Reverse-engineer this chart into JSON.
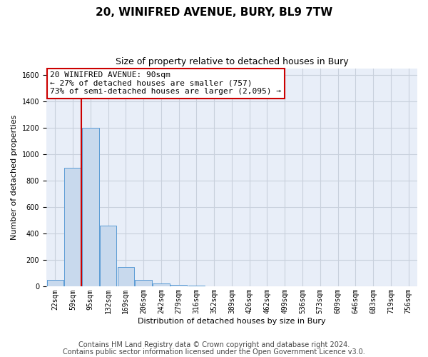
{
  "title": "20, WINIFRED AVENUE, BURY, BL9 7TW",
  "subtitle": "Size of property relative to detached houses in Bury",
  "xlabel": "Distribution of detached houses by size in Bury",
  "ylabel": "Number of detached properties",
  "categories": [
    "22sqm",
    "59sqm",
    "95sqm",
    "132sqm",
    "169sqm",
    "206sqm",
    "242sqm",
    "279sqm",
    "316sqm",
    "352sqm",
    "389sqm",
    "426sqm",
    "462sqm",
    "499sqm",
    "536sqm",
    "573sqm",
    "609sqm",
    "646sqm",
    "683sqm",
    "719sqm",
    "756sqm"
  ],
  "values": [
    50,
    900,
    1200,
    460,
    150,
    50,
    25,
    15,
    10,
    0,
    0,
    0,
    0,
    0,
    0,
    0,
    0,
    0,
    0,
    0,
    0
  ],
  "bar_color": "#c8d9ed",
  "bar_edge_color": "#5b9bd5",
  "red_line_x": 1.5,
  "annotation_title": "20 WINIFRED AVENUE: 90sqm",
  "annotation_line1": "← 27% of detached houses are smaller (757)",
  "annotation_line2": "73% of semi-detached houses are larger (2,095) →",
  "annotation_box_color": "#ffffff",
  "annotation_box_edge_color": "#cc0000",
  "ylim": [
    0,
    1650
  ],
  "yticks": [
    0,
    200,
    400,
    600,
    800,
    1000,
    1200,
    1400,
    1600
  ],
  "footer1": "Contains HM Land Registry data © Crown copyright and database right 2024.",
  "footer2": "Contains public sector information licensed under the Open Government Licence v3.0.",
  "background_color": "#ffffff",
  "plot_bg_color": "#e8eef8",
  "grid_color": "#c8d0dc",
  "title_fontsize": 11,
  "subtitle_fontsize": 9,
  "axis_label_fontsize": 8,
  "tick_fontsize": 7,
  "annotation_fontsize": 8,
  "footer_fontsize": 7,
  "red_color": "#cc0000"
}
